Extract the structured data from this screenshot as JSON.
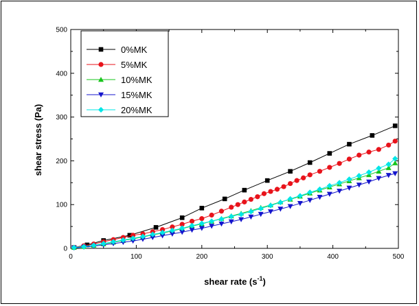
{
  "chart_data": {
    "type": "line",
    "title": "",
    "xlabel": "shear rate (s",
    "xlabel_sup": "-1",
    "xlabel_end": ")",
    "ylabel": "shear stress (Pa)",
    "xlim": [
      0,
      500
    ],
    "ylim": [
      0,
      500
    ],
    "xticks": [
      0,
      100,
      200,
      300,
      400,
      500
    ],
    "yticks": [
      0,
      100,
      200,
      300,
      400,
      500
    ],
    "grid": false,
    "legend_position": "top-left",
    "series": [
      {
        "name": "0%MK",
        "color": "#000000",
        "marker": "square",
        "x": [
          5,
          25,
          50,
          90,
          130,
          170,
          200,
          235,
          265,
          300,
          335,
          365,
          395,
          425,
          460,
          495
        ],
        "y": [
          2,
          8,
          18,
          30,
          48,
          70,
          92,
          113,
          133,
          155,
          176,
          196,
          217,
          238,
          258,
          280
        ]
      },
      {
        "name": "5%MK",
        "color": "#e8131b",
        "marker": "circle",
        "x": [
          5,
          20,
          35,
          50,
          65,
          80,
          95,
          110,
          125,
          140,
          155,
          170,
          185,
          200,
          215,
          230,
          245,
          255,
          265,
          275,
          285,
          295,
          305,
          315,
          325,
          335,
          345,
          355,
          365,
          380,
          395,
          410,
          425,
          440,
          455,
          470,
          485,
          495
        ],
        "y": [
          2,
          6,
          10,
          15,
          20,
          25,
          30,
          33,
          38,
          43,
          49,
          55,
          62,
          68,
          76,
          85,
          94,
          100,
          106,
          112,
          118,
          125,
          130,
          135,
          141,
          148,
          155,
          161,
          168,
          176,
          185,
          194,
          204,
          213,
          220,
          226,
          236,
          245
        ]
      },
      {
        "name": "10%MK",
        "color": "#17c41b",
        "marker": "triangle-up",
        "x": [
          5,
          20,
          35,
          50,
          65,
          80,
          95,
          110,
          125,
          140,
          155,
          170,
          185,
          200,
          215,
          230,
          245,
          260,
          275,
          290,
          305,
          320,
          335,
          350,
          365,
          380,
          395,
          410,
          425,
          440,
          455,
          470,
          485,
          495
        ],
        "y": [
          2,
          4,
          7,
          10,
          14,
          18,
          22,
          26,
          31,
          35,
          40,
          45,
          51,
          56,
          62,
          68,
          74,
          80,
          86,
          93,
          99,
          106,
          112,
          119,
          126,
          133,
          140,
          147,
          154,
          161,
          168,
          176,
          184,
          195
        ]
      },
      {
        "name": "15%MK",
        "color": "#1414cc",
        "marker": "triangle-down",
        "x": [
          5,
          20,
          35,
          50,
          65,
          80,
          95,
          110,
          125,
          140,
          155,
          170,
          185,
          200,
          215,
          230,
          245,
          260,
          275,
          290,
          305,
          320,
          335,
          350,
          365,
          380,
          395,
          410,
          425,
          440,
          455,
          470,
          485,
          495
        ],
        "y": [
          1,
          3,
          5,
          8,
          11,
          14,
          17,
          21,
          25,
          29,
          33,
          37,
          42,
          46,
          51,
          56,
          61,
          66,
          72,
          78,
          84,
          90,
          96,
          103,
          110,
          117,
          124,
          131,
          138,
          145,
          152,
          160,
          167,
          171
        ]
      },
      {
        "name": "20%MK",
        "color": "#00e6e6",
        "marker": "diamond",
        "x": [
          5,
          20,
          35,
          50,
          65,
          80,
          95,
          110,
          125,
          140,
          155,
          170,
          185,
          200,
          215,
          230,
          245,
          260,
          275,
          290,
          305,
          320,
          335,
          350,
          365,
          380,
          395,
          410,
          425,
          440,
          455,
          470,
          485,
          495
        ],
        "y": [
          2,
          4,
          7,
          11,
          15,
          19,
          23,
          27,
          32,
          36,
          41,
          46,
          52,
          57,
          62,
          67,
          73,
          78,
          84,
          91,
          98,
          105,
          113,
          120,
          128,
          135,
          143,
          150,
          158,
          166,
          174,
          183,
          192,
          205
        ]
      }
    ]
  }
}
